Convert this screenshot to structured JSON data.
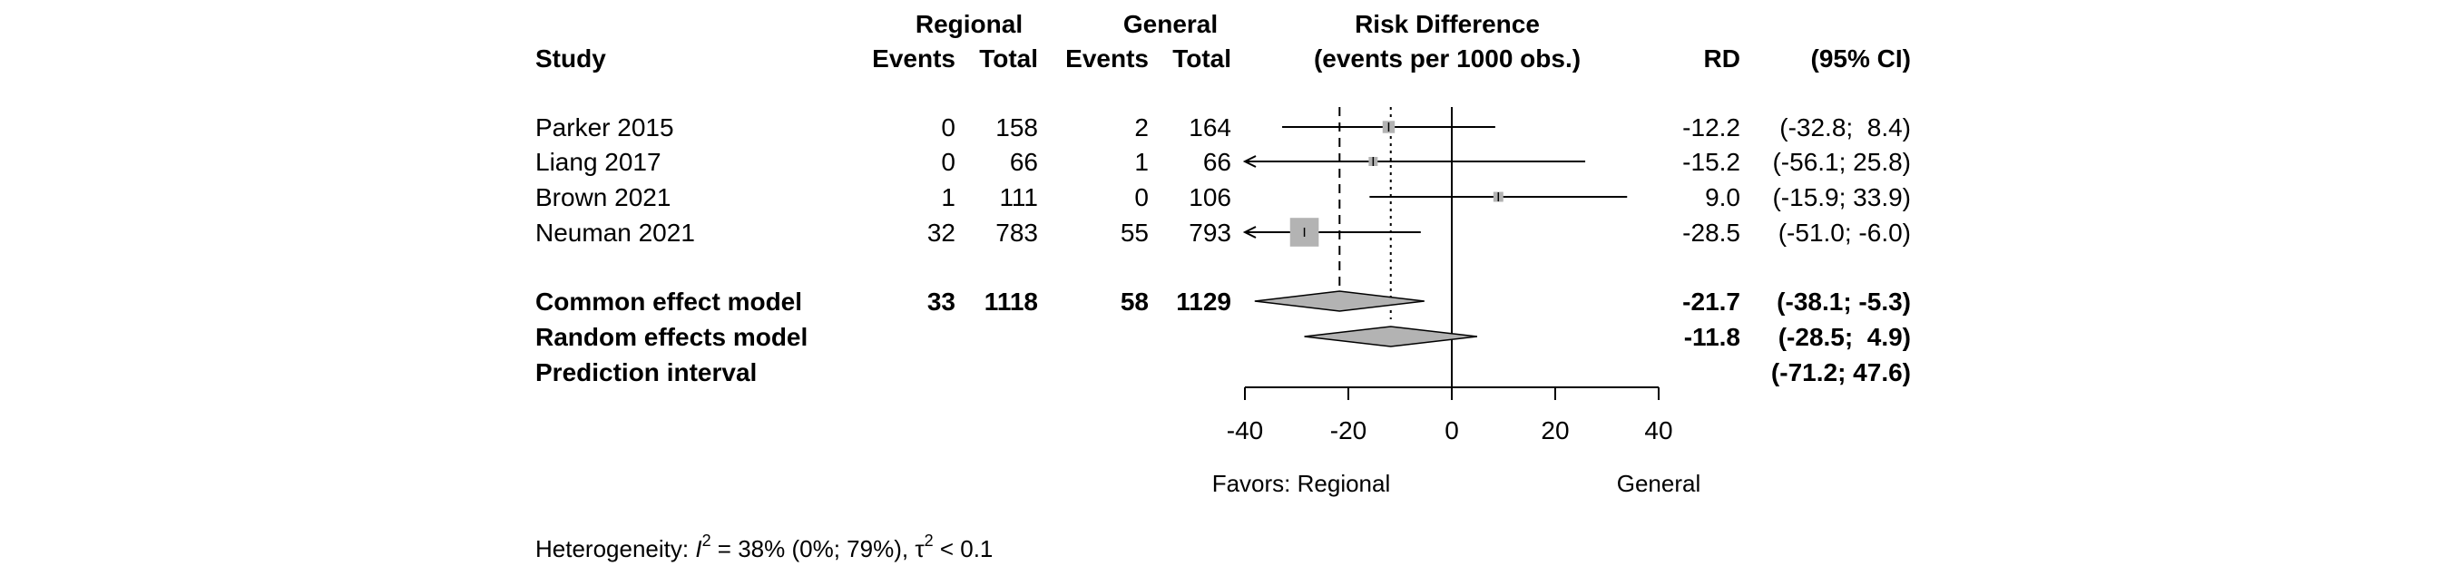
{
  "headers": {
    "study": "Study",
    "regional": "Regional",
    "general": "General",
    "events_regional": "Events",
    "total_regional": "Total",
    "events_general": "Events",
    "total_general": "Total",
    "effect_line1": "Risk Difference",
    "effect_line2": "(events per 1000 obs.)",
    "rd": "RD",
    "ci": "(95% CI)"
  },
  "chart_data": {
    "type": "forest",
    "measure": "Risk Difference (events per 1000 obs.)",
    "xlim": [
      -40,
      40
    ],
    "x_ticks": [
      -40,
      -20,
      0,
      20,
      40
    ],
    "x_tick_labels": [
      "-40",
      "-20",
      "0",
      "20",
      "40"
    ],
    "favors_left": "Favors: Regional",
    "favors_right": "General",
    "null_line": 0,
    "common_effect_line": -21.7,
    "random_effect_line": -11.8,
    "studies": [
      {
        "name": "Parker 2015",
        "events_regional": "0",
        "total_regional": "158",
        "events_general": "2",
        "total_general": "164",
        "rd": -12.2,
        "ci_low": -32.8,
        "ci_high": 8.4,
        "rd_text": "-12.2",
        "ci_text": "(-32.8;  8.4)",
        "weight": 0.018
      },
      {
        "name": "Liang 2017",
        "events_regional": "0",
        "total_regional": "66",
        "events_general": "1",
        "total_general": "66",
        "rd": -15.2,
        "ci_low": -56.1,
        "ci_high": 25.8,
        "rd_text": "-15.2",
        "ci_text": "(-56.1; 25.8)",
        "weight": 0.006
      },
      {
        "name": "Brown 2021",
        "events_regional": "1",
        "total_regional": "111",
        "events_general": "0",
        "total_general": "106",
        "rd": 9.0,
        "ci_low": -15.9,
        "ci_high": 33.9,
        "rd_text": "9.0",
        "ci_text": "(-15.9; 33.9)",
        "weight": 0.012
      },
      {
        "name": "Neuman 2021",
        "events_regional": "32",
        "total_regional": "783",
        "events_general": "55",
        "total_general": "793",
        "rd": -28.5,
        "ci_low": -51.0,
        "ci_high": -6.0,
        "rd_text": "-28.5",
        "ci_text": "(-51.0; -6.0)",
        "weight": 0.1
      }
    ],
    "pooled": [
      {
        "name": "Common effect model",
        "events_regional": "33",
        "total_regional": "1118",
        "events_general": "58",
        "total_general": "1129",
        "rd": -21.7,
        "ci_low": -38.1,
        "ci_high": -5.3,
        "rd_text": "-21.7",
        "ci_text": "(-38.1; -5.3)"
      },
      {
        "name": "Random effects model",
        "events_regional": "",
        "total_regional": "",
        "events_general": "",
        "total_general": "",
        "rd": -11.8,
        "ci_low": -28.5,
        "ci_high": 4.9,
        "rd_text": "-11.8",
        "ci_text": "(-28.5;  4.9)"
      }
    ],
    "prediction_interval": {
      "name": "Prediction interval",
      "ci_low": -71.2,
      "ci_high": 47.6,
      "ci_text": "(-71.2; 47.6)"
    },
    "heterogeneity": {
      "prefix": "Heterogeneity: ",
      "i2_symbol": "I",
      "i2_text": " = 38% (0%; 79%), ",
      "tau_symbol": "τ",
      "tau_text": " < 0.1"
    }
  }
}
